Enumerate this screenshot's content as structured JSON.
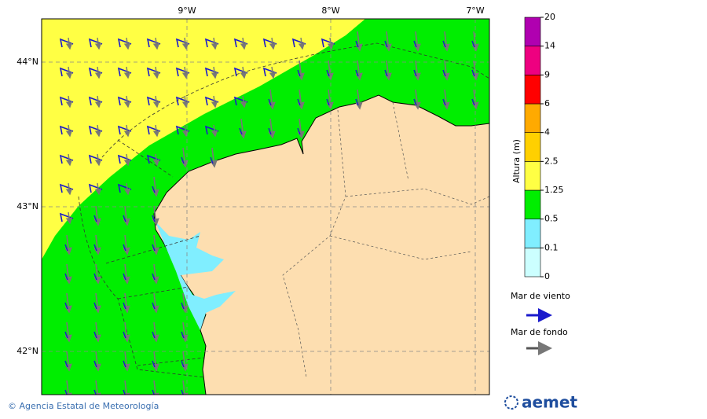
{
  "map": {
    "lon_labels": [
      "9°W",
      "8°W",
      "7°W"
    ],
    "lat_labels": [
      "44°N",
      "43°N",
      "42°N"
    ]
  },
  "colorbar": {
    "title": "Altura (m)",
    "ticks": [
      0,
      0.1,
      0.5,
      1.25,
      2.5,
      4,
      6,
      9,
      14,
      20
    ],
    "colors": [
      "#ccffff",
      "#80eeff",
      "#00ee00",
      "#ffff44",
      "#ffd000",
      "#ffaa00",
      "#ff0000",
      "#ee0080",
      "#b000b0"
    ]
  },
  "legend": {
    "wind_sea": "Mar de viento",
    "swell": "Mar de fondo"
  },
  "footer": {
    "copyright": "© Agencia Estatal de Meteorología",
    "logo": "aemet"
  }
}
